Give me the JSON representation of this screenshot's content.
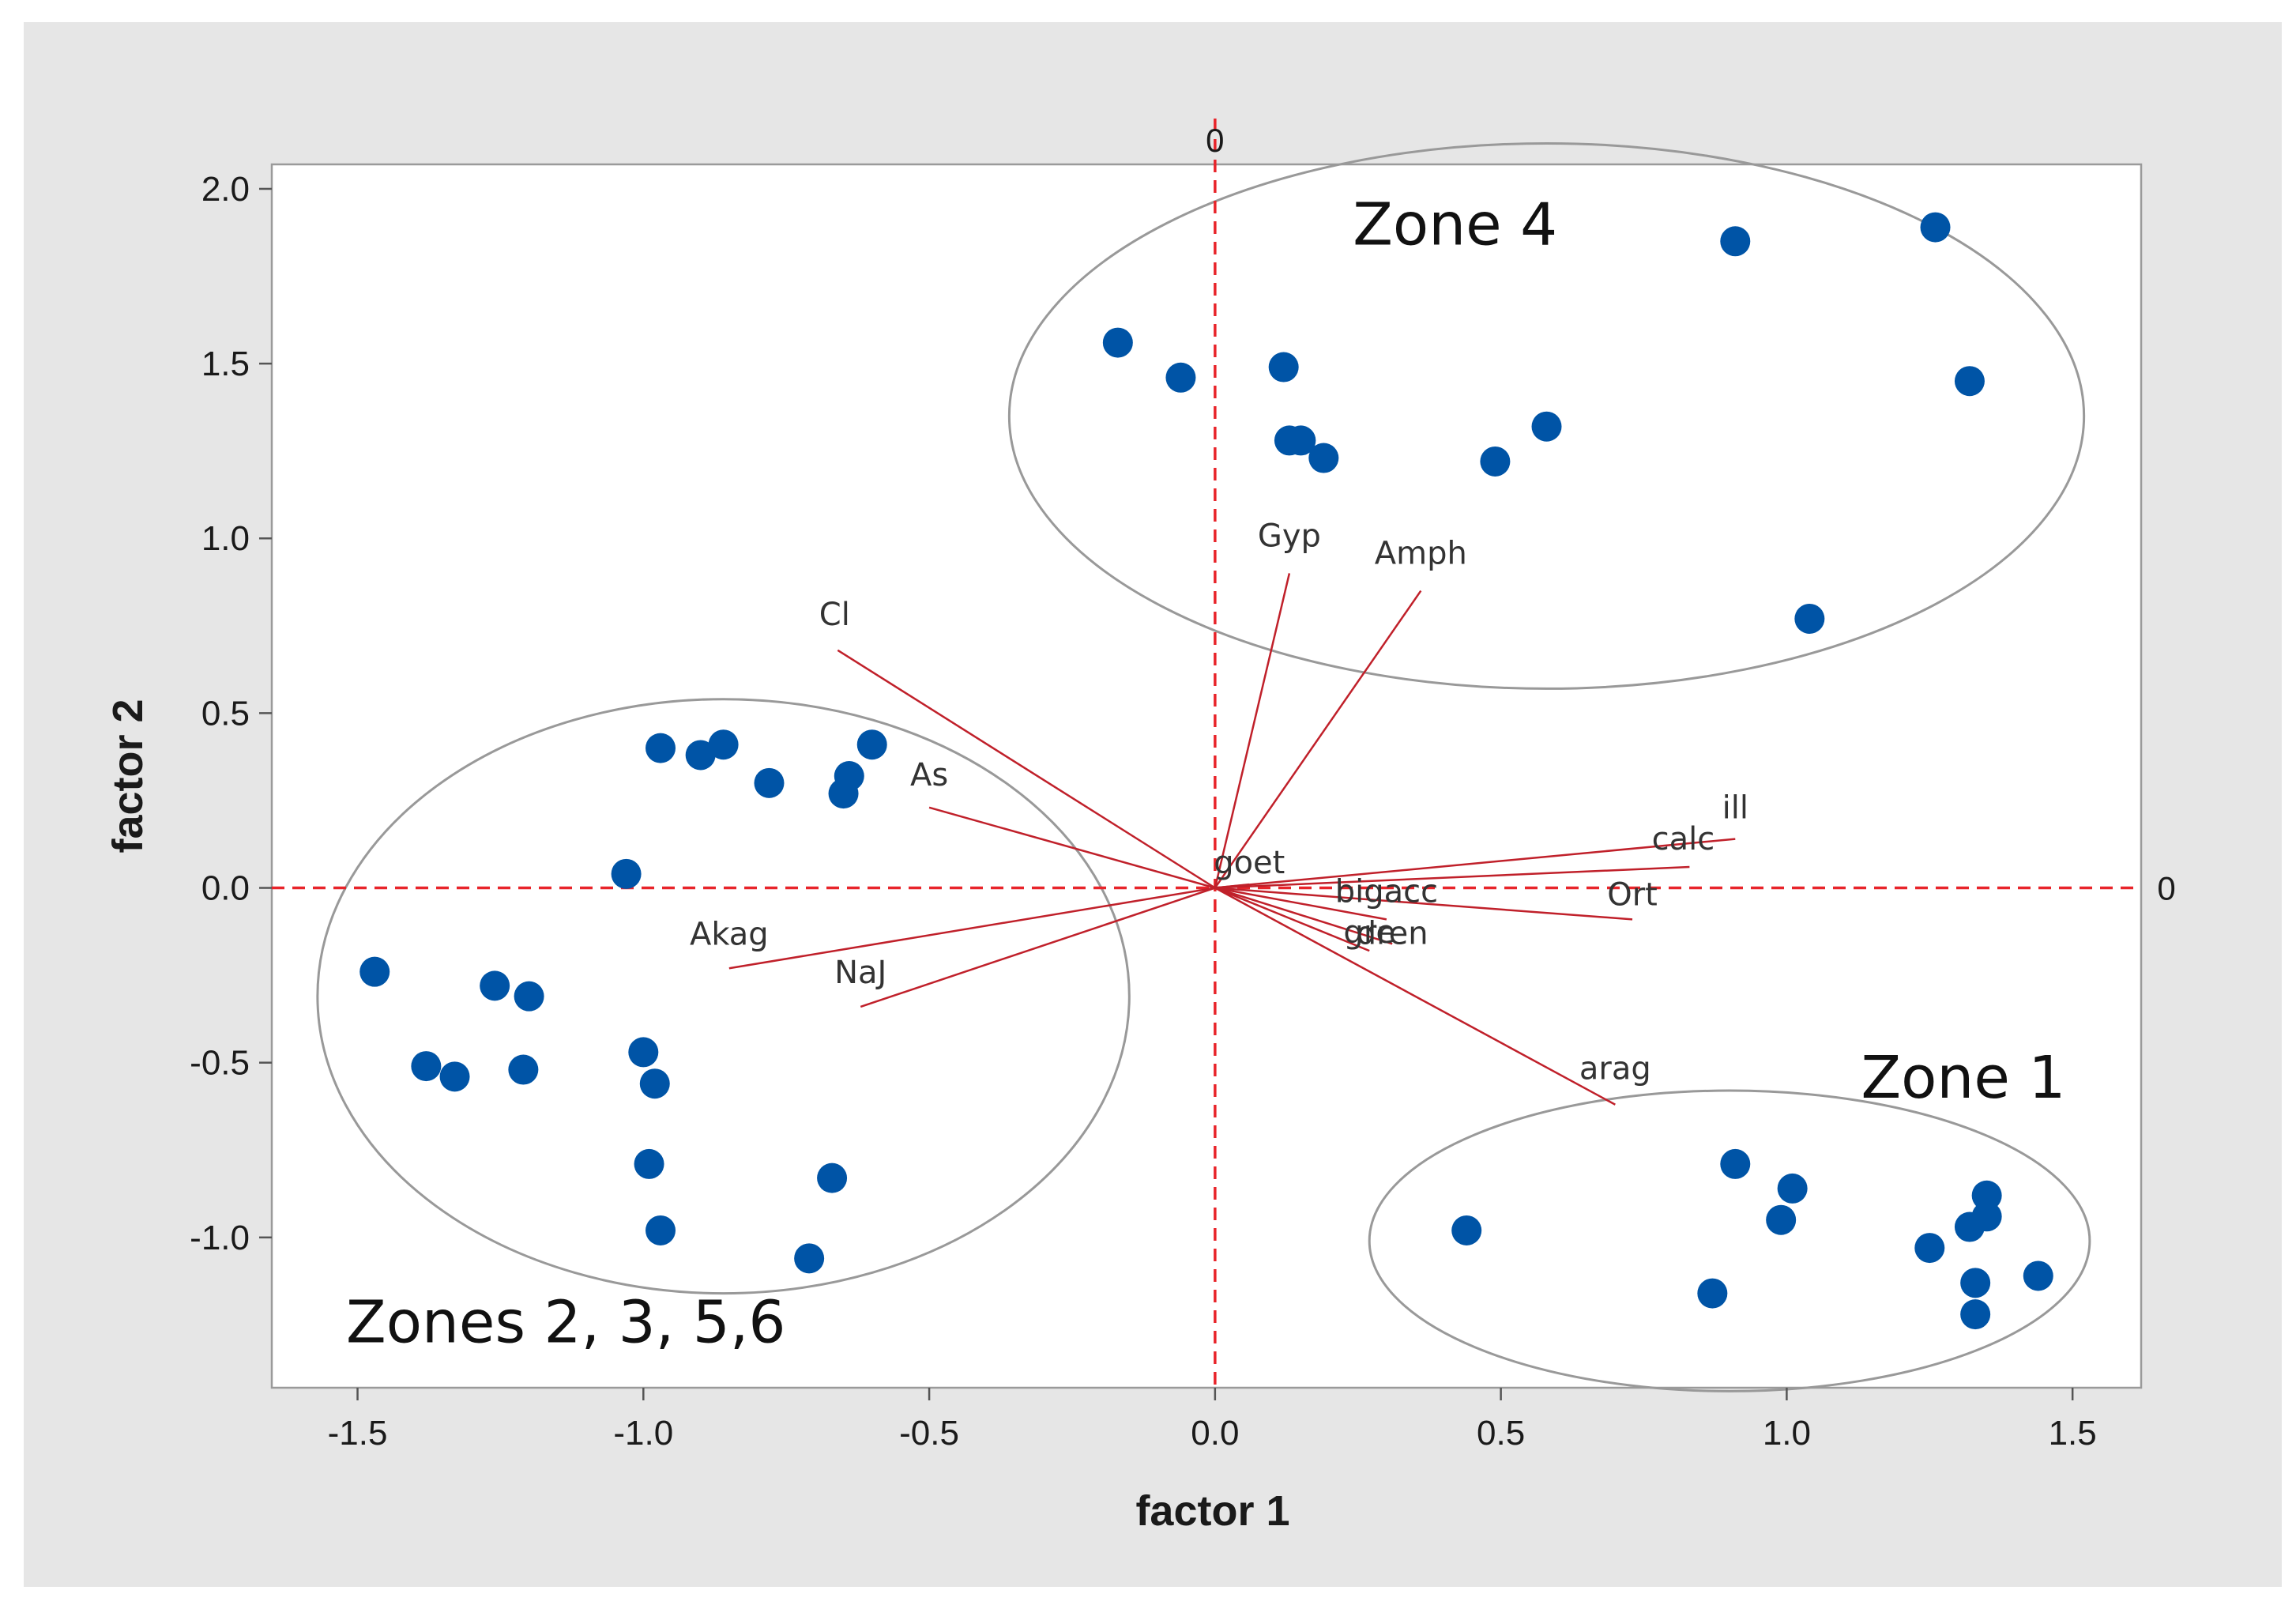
{
  "colors": {
    "outer_background": "#e6e6e6",
    "plot_background": "#ffffff",
    "point": "#0054a6",
    "vector": "#c0202a",
    "reference_line": "#e8242a",
    "reference_label": "#c0202a",
    "ellipse": "#999999",
    "frame": "#9a9a9a"
  },
  "chart_data": {
    "type": "scatter",
    "subtype": "biplot",
    "title": "",
    "xlabel": "factor 1",
    "ylabel": "factor 2",
    "xlim": [
      -1.65,
      1.62
    ],
    "ylim": [
      -1.43,
      2.07
    ],
    "x_ticks": [
      -1.5,
      -1.0,
      -0.5,
      0.0,
      0.5,
      1.0,
      1.5
    ],
    "x_tick_labels": [
      "-1.5",
      "-1.0",
      "-0.5",
      "0.0",
      "0.5",
      "1.0",
      "1.5"
    ],
    "y_ticks": [
      -1.0,
      -0.5,
      0.0,
      0.5,
      1.0,
      1.5,
      2.0
    ],
    "y_tick_labels": [
      "-1.0",
      "-0.5",
      "0.0",
      "0.5",
      "1.0",
      "1.5",
      "2.0"
    ],
    "grid": false,
    "reference_lines": {
      "x": 0,
      "y": 0,
      "x_label": "0",
      "y_label": "0"
    },
    "points": [
      {
        "x": -0.17,
        "y": 1.56
      },
      {
        "x": -0.06,
        "y": 1.46
      },
      {
        "x": 0.12,
        "y": 1.49
      },
      {
        "x": 0.13,
        "y": 1.28
      },
      {
        "x": 0.15,
        "y": 1.28
      },
      {
        "x": 0.19,
        "y": 1.23
      },
      {
        "x": 0.49,
        "y": 1.22
      },
      {
        "x": 0.58,
        "y": 1.32
      },
      {
        "x": 0.91,
        "y": 1.85
      },
      {
        "x": 1.26,
        "y": 1.89
      },
      {
        "x": 1.32,
        "y": 1.45
      },
      {
        "x": 1.04,
        "y": 0.77
      },
      {
        "x": -0.97,
        "y": 0.4
      },
      {
        "x": -0.9,
        "y": 0.38
      },
      {
        "x": -0.86,
        "y": 0.41
      },
      {
        "x": -0.78,
        "y": 0.3
      },
      {
        "x": -0.6,
        "y": 0.41
      },
      {
        "x": -0.64,
        "y": 0.32
      },
      {
        "x": -0.65,
        "y": 0.27
      },
      {
        "x": -1.03,
        "y": 0.04
      },
      {
        "x": -1.47,
        "y": -0.24
      },
      {
        "x": -1.26,
        "y": -0.28
      },
      {
        "x": -1.2,
        "y": -0.31
      },
      {
        "x": -1.38,
        "y": -0.51
      },
      {
        "x": -1.33,
        "y": -0.54
      },
      {
        "x": -1.21,
        "y": -0.52
      },
      {
        "x": -1.0,
        "y": -0.47
      },
      {
        "x": -0.98,
        "y": -0.56
      },
      {
        "x": -0.99,
        "y": -0.79
      },
      {
        "x": -0.97,
        "y": -0.98
      },
      {
        "x": -0.67,
        "y": -0.83
      },
      {
        "x": -0.71,
        "y": -1.06
      },
      {
        "x": 0.44,
        "y": -0.98
      },
      {
        "x": 0.91,
        "y": -0.79
      },
      {
        "x": 1.01,
        "y": -0.86
      },
      {
        "x": 0.99,
        "y": -0.95
      },
      {
        "x": 0.87,
        "y": -1.16
      },
      {
        "x": 1.25,
        "y": -1.03
      },
      {
        "x": 1.32,
        "y": -0.97
      },
      {
        "x": 1.35,
        "y": -0.88
      },
      {
        "x": 1.35,
        "y": -0.94
      },
      {
        "x": 1.33,
        "y": -1.13
      },
      {
        "x": 1.33,
        "y": -1.22
      },
      {
        "x": 1.44,
        "y": -1.11
      }
    ],
    "vectors": [
      {
        "label": "Cl",
        "x": -0.66,
        "y": 0.68
      },
      {
        "label": "As",
        "x": -0.5,
        "y": 0.23
      },
      {
        "label": "Akag",
        "x": -0.85,
        "y": -0.23
      },
      {
        "label": "NaJ",
        "x": -0.62,
        "y": -0.34
      },
      {
        "label": "Gyp",
        "x": 0.13,
        "y": 0.9
      },
      {
        "label": "Amph",
        "x": 0.36,
        "y": 0.85
      },
      {
        "label": "ill",
        "x": 0.91,
        "y": 0.14
      },
      {
        "label": "calc",
        "x": 0.83,
        "y": 0.06
      },
      {
        "label": "Ort",
        "x": 0.73,
        "y": -0.09
      },
      {
        "label": "goet",
        "x": 0.06,
        "y": 0.01
      },
      {
        "label": "bigacc",
        "x": 0.3,
        "y": -0.09
      },
      {
        "label": "dren",
        "x": 0.31,
        "y": -0.16
      },
      {
        "label": "gre",
        "x": 0.27,
        "y": -0.18
      },
      {
        "label": "arag",
        "x": 0.7,
        "y": -0.62
      }
    ],
    "ellipses": [
      {
        "name": "Zone 4",
        "label": "Zone 4",
        "cx": 0.58,
        "cy": 1.35,
        "rx": 0.94,
        "ry": 0.78
      },
      {
        "name": "Zones 2, 3, 5,6",
        "label": "Zones 2, 3, 5,6",
        "cx": -0.86,
        "cy": -0.31,
        "rx": 0.71,
        "ry": 0.85
      },
      {
        "name": "Zone 1",
        "label": "Zone 1",
        "cx": 0.9,
        "cy": -1.01,
        "rx": 0.63,
        "ry": 0.43
      }
    ]
  }
}
